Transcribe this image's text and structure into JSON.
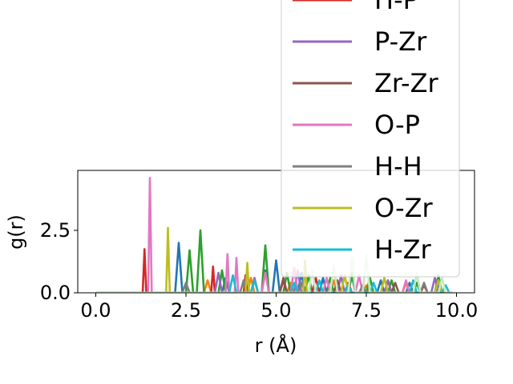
{
  "chart_data": {
    "type": "line",
    "xlabel": "r (Å)",
    "ylabel": "g(r)",
    "xlim": [
      -0.5,
      10.5
    ],
    "ylim": [
      0,
      4.9
    ],
    "x_ticks": [
      0.0,
      2.5,
      5.0,
      7.5,
      10.0
    ],
    "x_tick_labels": [
      "0.0",
      "2.5",
      "5.0",
      "7.5",
      "10.0"
    ],
    "y_ticks": [
      0.0,
      2.5
    ],
    "y_tick_labels": [
      "0.0",
      "2.5"
    ],
    "grid": false,
    "legend_position": "upper-right, extending above the axes",
    "legend_visible_labels": [
      "H-P",
      "P-Zr",
      "Zr-Zr",
      "O-P",
      "H-H",
      "O-Zr",
      "H-Zr"
    ],
    "series": [
      {
        "name": "",
        "color": "#1f77b4",
        "x": [
          0,
          1.3,
          2.2,
          2.3,
          2.4,
          3.5,
          3.6,
          3.7,
          4.6,
          4.7,
          4.8,
          4.9,
          5.0,
          5.1,
          5.6,
          5.7,
          5.8,
          6.2,
          6.3,
          6.4,
          7.0,
          7.1,
          7.2,
          7.8,
          7.9,
          8.0,
          8.6,
          8.7,
          8.8,
          9.4,
          9.5,
          9.6,
          9.9
        ],
        "y": [
          0,
          0,
          0,
          2.0,
          0,
          0,
          0.6,
          0,
          0,
          0.9,
          0,
          0,
          1.3,
          0,
          0,
          0.8,
          0,
          0,
          0.6,
          0,
          0,
          0.7,
          0,
          0,
          0.5,
          0,
          0,
          0.4,
          0,
          0,
          0.3,
          0,
          0
        ]
      },
      {
        "name": "",
        "color": "#ff7f0e",
        "x": [
          0,
          3.0,
          3.1,
          3.2,
          4.2,
          4.3,
          4.4,
          5.3,
          5.4,
          5.5,
          6.5,
          6.6,
          6.7,
          7.4,
          7.5,
          7.6,
          8.5,
          8.6,
          8.7,
          9.9
        ],
        "y": [
          0,
          0,
          0.5,
          0,
          0,
          0.6,
          0,
          0,
          0.4,
          0,
          0,
          0.5,
          0,
          0,
          0.3,
          0,
          0,
          0.4,
          0,
          0
        ]
      },
      {
        "name": "",
        "color": "#2ca02c",
        "x": [
          0,
          2.5,
          2.6,
          2.7,
          2.8,
          2.9,
          3.0,
          3.4,
          3.5,
          3.6,
          4.5,
          4.6,
          4.7,
          4.8,
          5.2,
          5.3,
          5.4,
          5.8,
          5.9,
          6.0,
          6.4,
          6.5,
          6.6,
          7.0,
          7.1,
          7.2,
          7.5,
          7.6,
          7.7,
          8.1,
          8.2,
          8.3,
          8.8,
          8.9,
          9.0,
          9.4,
          9.5,
          9.6,
          9.9
        ],
        "y": [
          0,
          0,
          1.7,
          0,
          0,
          2.5,
          0,
          0,
          0.9,
          0,
          0,
          0,
          1.9,
          0,
          0,
          0.8,
          0,
          0,
          0.7,
          0,
          0,
          0.6,
          0,
          0,
          0.8,
          0,
          0,
          0.6,
          0,
          0,
          0.5,
          0,
          0,
          0.4,
          0,
          0,
          0.7,
          0,
          0
        ]
      },
      {
        "name": "H-P",
        "color": "#d62728",
        "x": [
          0,
          1.3,
          1.35,
          1.4,
          3.2,
          3.25,
          3.3,
          4.1,
          4.15,
          4.2,
          5.1,
          5.2,
          5.3,
          6.0,
          6.1,
          6.2,
          6.9,
          7.0,
          7.1,
          8.0,
          8.1,
          8.2,
          9.0,
          9.1,
          9.2,
          9.9
        ],
        "y": [
          0,
          0,
          1.75,
          0,
          0,
          1.05,
          0,
          0,
          0.7,
          0,
          0,
          0.5,
          0,
          0,
          0.6,
          0,
          0,
          0.4,
          0,
          0,
          0.5,
          0,
          0,
          0.3,
          0,
          0
        ]
      },
      {
        "name": "P-Zr",
        "color": "#9467bd",
        "x": [
          0,
          3.3,
          3.4,
          3.5,
          4.3,
          4.4,
          4.5,
          5.5,
          5.6,
          5.7,
          6.7,
          6.8,
          6.9,
          8.0,
          8.1,
          8.2,
          9.3,
          9.4,
          9.5,
          9.9
        ],
        "y": [
          0,
          0,
          0.8,
          0,
          0,
          0.6,
          0,
          0,
          0.9,
          0,
          0,
          0.7,
          0,
          0,
          0.5,
          0,
          0,
          0.6,
          0,
          0
        ]
      },
      {
        "name": "Zr-Zr",
        "color": "#8c564b",
        "x": [
          0,
          5.1,
          5.2,
          5.3,
          6.6,
          6.7,
          6.8,
          8.2,
          8.3,
          8.4,
          9.9
        ],
        "y": [
          0,
          0,
          0.6,
          0,
          0,
          0.5,
          0,
          0,
          0.4,
          0,
          0
        ]
      },
      {
        "name": "O-P",
        "color": "#e377c2",
        "x": [
          0,
          1.45,
          1.5,
          1.55,
          3.6,
          3.65,
          3.7,
          3.85,
          3.9,
          3.95,
          4.6,
          4.7,
          4.8,
          5.4,
          5.5,
          5.6,
          6.3,
          6.4,
          6.5,
          7.2,
          7.3,
          7.4,
          8.5,
          8.6,
          8.7,
          9.9
        ],
        "y": [
          0,
          0,
          4.6,
          0,
          0,
          1.55,
          0,
          0,
          1.4,
          0,
          0,
          0.8,
          0,
          0,
          1.0,
          0,
          0,
          0.6,
          0,
          0,
          0.7,
          0,
          0,
          0.5,
          0,
          0
        ]
      },
      {
        "name": "H-H",
        "color": "#7f7f7f",
        "x": [
          0,
          2.4,
          2.5,
          2.6,
          4.0,
          4.1,
          4.2,
          5.6,
          5.7,
          5.8,
          7.3,
          7.4,
          7.5,
          9.0,
          9.1,
          9.2,
          9.9
        ],
        "y": [
          0,
          0,
          0.4,
          0,
          0,
          0.5,
          0,
          0,
          0.4,
          0,
          0,
          0.3,
          0,
          0,
          0.4,
          0,
          0
        ]
      },
      {
        "name": "O-Zr",
        "color": "#bcbd22",
        "x": [
          0,
          1.95,
          2.0,
          2.05,
          4.15,
          4.2,
          4.25,
          5.75,
          5.8,
          5.85,
          6.8,
          6.9,
          7.0,
          7.9,
          8.0,
          8.1,
          9.4,
          9.5,
          9.6,
          9.9
        ],
        "y": [
          0,
          0,
          2.6,
          0,
          0,
          1.2,
          0,
          0,
          1.3,
          0,
          0,
          0.7,
          0,
          0,
          0.6,
          0,
          0,
          0.5,
          0,
          0
        ]
      },
      {
        "name": "H-Zr",
        "color": "#17becf",
        "x": [
          0,
          3.7,
          3.8,
          3.9,
          4.3,
          4.4,
          4.5,
          5.4,
          5.5,
          5.6,
          6.1,
          6.2,
          6.3,
          6.9,
          7.0,
          7.1,
          7.6,
          7.7,
          7.8,
          8.7,
          8.8,
          8.9,
          9.6,
          9.7,
          9.8,
          9.9
        ],
        "y": [
          0,
          0,
          0.7,
          0,
          0,
          0.5,
          0,
          0,
          0.4,
          0,
          0,
          0.5,
          0,
          0,
          0.3,
          0,
          0,
          0.4,
          0,
          0,
          0.5,
          0,
          0,
          0.3,
          0,
          0
        ]
      },
      {
        "name": "",
        "color": "#c7e9c0",
        "x": [
          0,
          5.9,
          6.0,
          6.1,
          6.5,
          6.6,
          6.7,
          7.0,
          7.1,
          7.2,
          7.4,
          7.5,
          7.6,
          8.8,
          8.9,
          9.0,
          9.5,
          9.6,
          9.7,
          9.9
        ],
        "y": [
          0,
          0,
          0.9,
          0,
          0,
          1.1,
          0,
          0,
          1.4,
          0,
          0,
          1.5,
          0,
          0,
          0.8,
          0,
          0,
          0.6,
          0,
          0
        ]
      }
    ]
  }
}
